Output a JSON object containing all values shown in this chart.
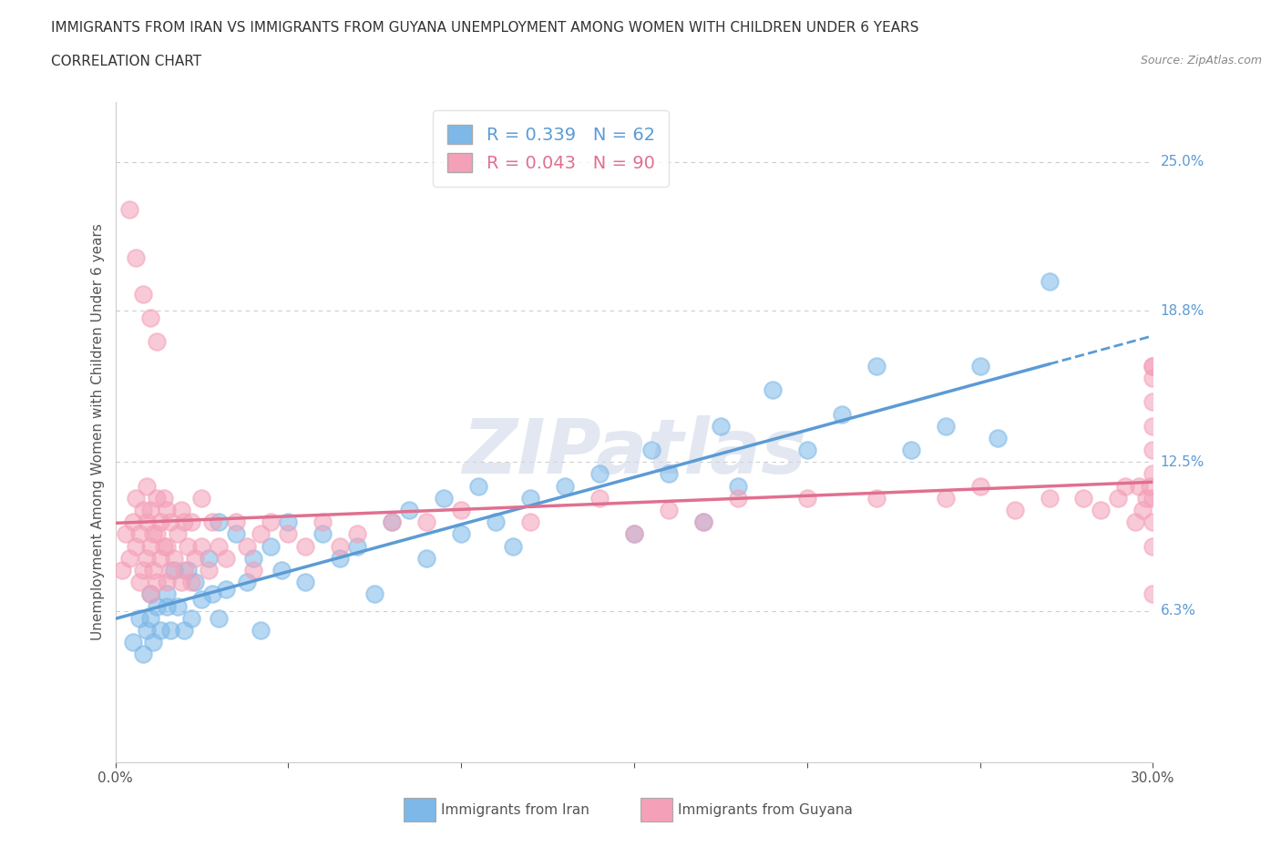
{
  "title_line1": "IMMIGRANTS FROM IRAN VS IMMIGRANTS FROM GUYANA UNEMPLOYMENT AMONG WOMEN WITH CHILDREN UNDER 6 YEARS",
  "title_line2": "CORRELATION CHART",
  "source_text": "Source: ZipAtlas.com",
  "ylabel": "Unemployment Among Women with Children Under 6 years",
  "xlim": [
    0.0,
    0.3
  ],
  "ylim": [
    0.0,
    0.275
  ],
  "ytick_vals": [
    0.0,
    0.063,
    0.125,
    0.188,
    0.25
  ],
  "ytick_labels": [
    "",
    "6.3%",
    "12.5%",
    "18.8%",
    "25.0%"
  ],
  "grid_color": "#cccccc",
  "background_color": "#ffffff",
  "iran_color": "#7db8e8",
  "guyana_color": "#f4a0b8",
  "iran_line_color": "#5b9bd5",
  "guyana_line_color": "#e07090",
  "iran_R": 0.339,
  "iran_N": 62,
  "guyana_R": 0.043,
  "guyana_N": 90,
  "legend_label_iran": "Immigrants from Iran",
  "legend_label_guyana": "Immigrants from Guyana",
  "watermark": "ZIPatlas",
  "iran_x": [
    0.005,
    0.007,
    0.008,
    0.009,
    0.01,
    0.01,
    0.011,
    0.012,
    0.013,
    0.015,
    0.015,
    0.016,
    0.017,
    0.018,
    0.02,
    0.021,
    0.022,
    0.023,
    0.025,
    0.027,
    0.028,
    0.03,
    0.03,
    0.032,
    0.035,
    0.038,
    0.04,
    0.042,
    0.045,
    0.048,
    0.05,
    0.055,
    0.06,
    0.065,
    0.07,
    0.075,
    0.08,
    0.085,
    0.09,
    0.095,
    0.1,
    0.105,
    0.11,
    0.115,
    0.12,
    0.13,
    0.14,
    0.15,
    0.155,
    0.16,
    0.17,
    0.175,
    0.18,
    0.19,
    0.2,
    0.21,
    0.22,
    0.23,
    0.24,
    0.25,
    0.255,
    0.27
  ],
  "iran_y": [
    0.05,
    0.06,
    0.045,
    0.055,
    0.06,
    0.07,
    0.05,
    0.065,
    0.055,
    0.065,
    0.07,
    0.055,
    0.08,
    0.065,
    0.055,
    0.08,
    0.06,
    0.075,
    0.068,
    0.085,
    0.07,
    0.1,
    0.06,
    0.072,
    0.095,
    0.075,
    0.085,
    0.055,
    0.09,
    0.08,
    0.1,
    0.075,
    0.095,
    0.085,
    0.09,
    0.07,
    0.1,
    0.105,
    0.085,
    0.11,
    0.095,
    0.115,
    0.1,
    0.09,
    0.11,
    0.115,
    0.12,
    0.095,
    0.13,
    0.12,
    0.1,
    0.14,
    0.115,
    0.155,
    0.13,
    0.145,
    0.165,
    0.13,
    0.14,
    0.165,
    0.135,
    0.2
  ],
  "guyana_x": [
    0.002,
    0.003,
    0.004,
    0.005,
    0.006,
    0.006,
    0.007,
    0.007,
    0.008,
    0.008,
    0.009,
    0.009,
    0.009,
    0.01,
    0.01,
    0.01,
    0.011,
    0.011,
    0.012,
    0.012,
    0.012,
    0.013,
    0.013,
    0.014,
    0.014,
    0.015,
    0.015,
    0.015,
    0.016,
    0.016,
    0.017,
    0.018,
    0.019,
    0.019,
    0.02,
    0.02,
    0.021,
    0.022,
    0.022,
    0.023,
    0.025,
    0.025,
    0.027,
    0.028,
    0.03,
    0.032,
    0.035,
    0.038,
    0.04,
    0.042,
    0.045,
    0.05,
    0.055,
    0.06,
    0.065,
    0.07,
    0.08,
    0.09,
    0.1,
    0.12,
    0.14,
    0.15,
    0.16,
    0.17,
    0.18,
    0.2,
    0.22,
    0.24,
    0.25,
    0.26,
    0.27,
    0.28,
    0.285,
    0.29,
    0.292,
    0.295,
    0.296,
    0.297,
    0.298,
    0.299,
    0.3,
    0.3,
    0.3,
    0.3,
    0.3,
    0.3,
    0.3,
    0.3,
    0.3,
    0.3
  ],
  "guyana_y": [
    0.08,
    0.095,
    0.085,
    0.1,
    0.09,
    0.11,
    0.075,
    0.095,
    0.08,
    0.105,
    0.085,
    0.1,
    0.115,
    0.07,
    0.09,
    0.105,
    0.08,
    0.095,
    0.075,
    0.095,
    0.11,
    0.085,
    0.1,
    0.09,
    0.11,
    0.075,
    0.09,
    0.105,
    0.08,
    0.1,
    0.085,
    0.095,
    0.075,
    0.105,
    0.08,
    0.1,
    0.09,
    0.075,
    0.1,
    0.085,
    0.09,
    0.11,
    0.08,
    0.1,
    0.09,
    0.085,
    0.1,
    0.09,
    0.08,
    0.095,
    0.1,
    0.095,
    0.09,
    0.1,
    0.09,
    0.095,
    0.1,
    0.1,
    0.105,
    0.1,
    0.11,
    0.095,
    0.105,
    0.1,
    0.11,
    0.11,
    0.11,
    0.11,
    0.115,
    0.105,
    0.11,
    0.11,
    0.105,
    0.11,
    0.115,
    0.1,
    0.115,
    0.105,
    0.11,
    0.115,
    0.09,
    0.1,
    0.11,
    0.12,
    0.13,
    0.14,
    0.15,
    0.07,
    0.16,
    0.165
  ],
  "guyana_outlier_x": [
    0.004,
    0.006,
    0.008,
    0.01,
    0.012,
    0.3
  ],
  "guyana_outlier_y": [
    0.23,
    0.21,
    0.195,
    0.185,
    0.175,
    0.165
  ]
}
